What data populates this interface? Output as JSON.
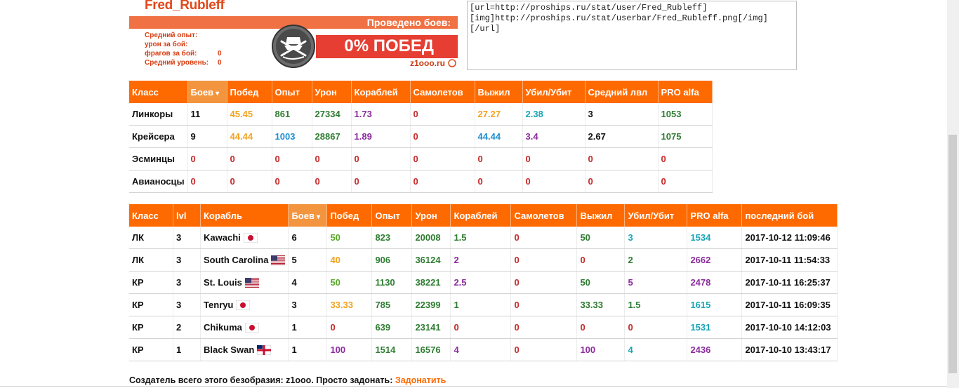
{
  "userbar": {
    "player_name": "Fred_Rubleff",
    "battles_label": "Проведено боев:",
    "stats": [
      {
        "label": "Средний опыт:",
        "value": ""
      },
      {
        "label": "урон за бой:",
        "value": ""
      },
      {
        "label": "фрагов за бой:",
        "value": "0"
      },
      {
        "label": "Средний уровень:",
        "value": "0"
      }
    ],
    "win_text": "0% ПОБЕД",
    "site": "z1ooo.ru"
  },
  "embed_code": "[url=http://proships.ru/stat/user/Fred_Rubleff][img]http://proships.ru/stat/userbar/Fred_Rubleff.png[/img][/url]",
  "class_table": {
    "headers": [
      "Класс",
      "Боев",
      "Побед",
      "Опыт",
      "Урон",
      "Кораблей",
      "Самолетов",
      "Выжил",
      "Убил/Убит",
      "Средний лвл",
      "PRO alfa"
    ],
    "rows": [
      [
        "Линкоры",
        "11",
        "45.45",
        "861",
        "27334",
        "1.73",
        "0",
        "27.27",
        "2.38",
        "3",
        "1053"
      ],
      [
        "Крейсера",
        "9",
        "44.44",
        "1003",
        "28867",
        "1.89",
        "0",
        "44.44",
        "3.4",
        "2.67",
        "1075"
      ],
      [
        "Эсминцы",
        "0",
        "0",
        "0",
        "0",
        "0",
        "0",
        "0",
        "0",
        "0",
        "0"
      ],
      [
        "Авианосцы",
        "0",
        "0",
        "0",
        "0",
        "0",
        "0",
        "0",
        "0",
        "0",
        "0"
      ]
    ]
  },
  "ship_table": {
    "headers": [
      "Класс",
      "lvl",
      "Корабль",
      "Боев",
      "Побед",
      "Опыт",
      "Урон",
      "Кораблей",
      "Самолетов",
      "Выжил",
      "Убил/Убит",
      "PRO alfa",
      "последний бой"
    ],
    "rows": [
      {
        "cls": "ЛК",
        "lvl": "3",
        "ship": "Kawachi",
        "flag": "jp",
        "battles": "6",
        "wins": "50",
        "exp": "823",
        "dmg": "20008",
        "ships": "1.5",
        "planes": "0",
        "survived": "50",
        "kd": "3",
        "pro": "1534",
        "last": "2017-10-12 11:09:46"
      },
      {
        "cls": "ЛК",
        "lvl": "3",
        "ship": "South Carolina",
        "flag": "us",
        "battles": "5",
        "wins": "40",
        "exp": "906",
        "dmg": "36124",
        "ships": "2",
        "planes": "0",
        "survived": "0",
        "kd": "2",
        "pro": "2662",
        "last": "2017-10-11 11:54:33"
      },
      {
        "cls": "КР",
        "lvl": "3",
        "ship": "St. Louis",
        "flag": "us",
        "battles": "4",
        "wins": "50",
        "exp": "1130",
        "dmg": "38221",
        "ships": "2.5",
        "planes": "0",
        "survived": "50",
        "kd": "5",
        "pro": "2478",
        "last": "2017-10-11 16:25:37"
      },
      {
        "cls": "КР",
        "lvl": "3",
        "ship": "Tenryu",
        "flag": "jp",
        "battles": "3",
        "wins": "33.33",
        "exp": "785",
        "dmg": "22399",
        "ships": "1",
        "planes": "0",
        "survived": "33.33",
        "kd": "1.5",
        "pro": "1615",
        "last": "2017-10-11 16:09:35"
      },
      {
        "cls": "КР",
        "lvl": "2",
        "ship": "Chikuma",
        "flag": "jp",
        "battles": "1",
        "wins": "0",
        "exp": "639",
        "dmg": "23141",
        "ships": "0",
        "planes": "0",
        "survived": "0",
        "kd": "0",
        "pro": "1531",
        "last": "2017-10-10 14:12:03"
      },
      {
        "cls": "КР",
        "lvl": "1",
        "ship": "Black Swan",
        "flag": "uk",
        "battles": "1",
        "wins": "100",
        "exp": "1514",
        "dmg": "16576",
        "ships": "4",
        "planes": "0",
        "survived": "100",
        "kd": "4",
        "pro": "2436",
        "last": "2017-10-10 13:43:17"
      }
    ]
  },
  "footer": {
    "text": "Создатель всего этого безобразия: z1ooo. Просто задонать: ",
    "link": "Задонатить"
  }
}
